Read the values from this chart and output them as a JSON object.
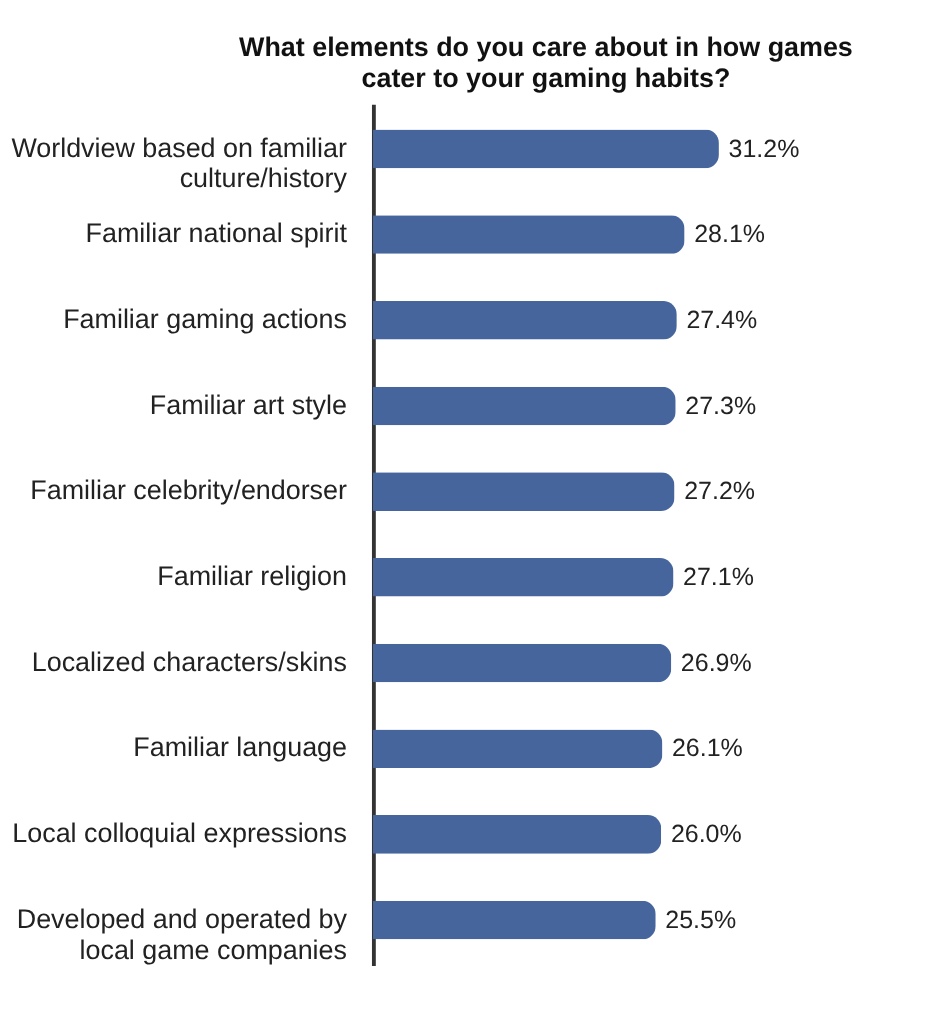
{
  "chart_data": {
    "type": "bar",
    "orientation": "horizontal",
    "title": "What elements do you care about in how games cater to your gaming habits?",
    "categories": [
      "Worldview based on familiar culture/history",
      "Familiar national spirit",
      "Familiar gaming actions",
      "Familiar art style",
      "Familiar celebrity/endorser",
      "Familiar religion",
      "Localized characters/skins",
      "Familiar language",
      "Local colloquial expressions",
      "Developed and operated by local game companies"
    ],
    "values": [
      31.2,
      28.1,
      27.4,
      27.3,
      27.2,
      27.1,
      26.9,
      26.1,
      26.0,
      25.5
    ],
    "value_labels": [
      "31.2%",
      "28.1%",
      "27.4%",
      "27.3%",
      "27.2%",
      "27.1%",
      "26.9%",
      "26.1%",
      "26.0%",
      "25.5%"
    ],
    "color": "#46659c",
    "tick_labels": "y",
    "grid": false
  }
}
